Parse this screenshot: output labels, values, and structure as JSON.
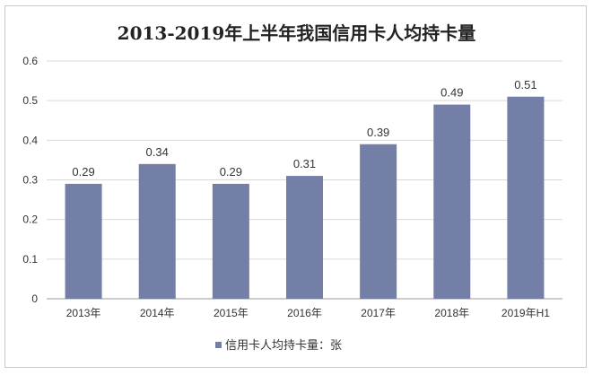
{
  "chart_data": {
    "type": "bar",
    "title": "2013-2019年上半年我国信用卡人均持卡量",
    "categories": [
      "2013年",
      "2014年",
      "2015年",
      "2016年",
      "2017年",
      "2018年",
      "2019年H1"
    ],
    "series": [
      {
        "name": "信用卡人均持卡量：张",
        "values": [
          0.29,
          0.34,
          0.29,
          0.31,
          0.39,
          0.49,
          0.51
        ]
      }
    ],
    "value_labels": [
      "0.29",
      "0.34",
      "0.29",
      "0.31",
      "0.39",
      "0.49",
      "0.51"
    ],
    "ylim": [
      0,
      0.6
    ],
    "yticks": [
      0,
      0.1,
      0.2,
      0.3,
      0.4,
      0.5,
      0.6
    ],
    "ytick_labels": [
      "0",
      "0.1",
      "0.2",
      "0.3",
      "0.4",
      "0.5",
      "0.6"
    ],
    "xlabel": "",
    "ylabel": "",
    "grid": true,
    "legend_position": "bottom",
    "bar_color": "#737fa6"
  }
}
